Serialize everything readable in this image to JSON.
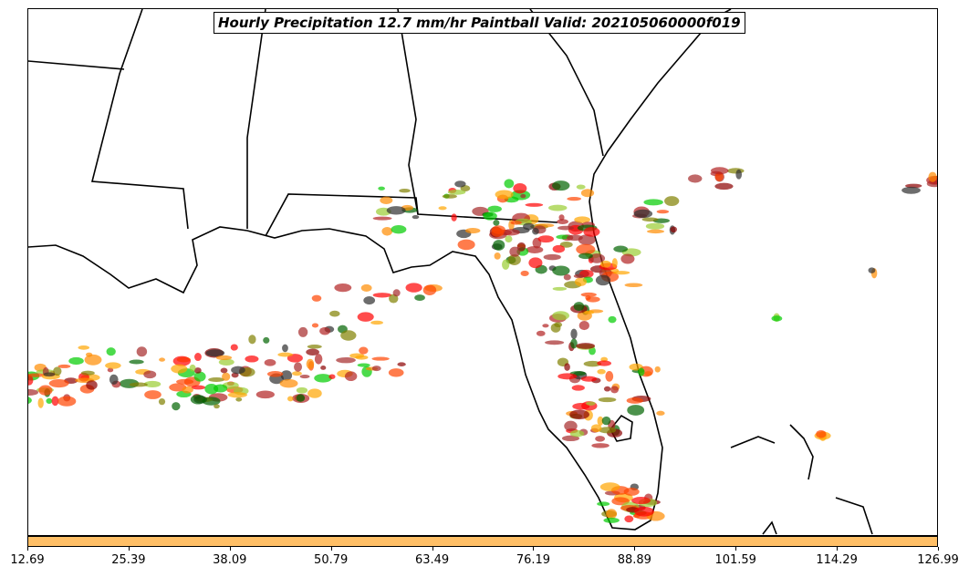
{
  "title": "Hourly Precipitation 12.7 mm/hr Paintball Valid: 202105060000f019",
  "colorbar": {
    "color": "#ffbf66",
    "ticks": [
      "12.69",
      "25.39",
      "38.09",
      "50.79",
      "63.49",
      "76.19",
      "88.89",
      "101.59",
      "114.29",
      "126.99"
    ]
  },
  "paintball_colors": [
    "#ff0000",
    "#ff8c00",
    "#ffa500",
    "#808000",
    "#9acd32",
    "#006400",
    "#00cc00",
    "#8b0000",
    "#a52a2a",
    "#2f2f2f",
    "#ff4500",
    "#b22222"
  ]
}
